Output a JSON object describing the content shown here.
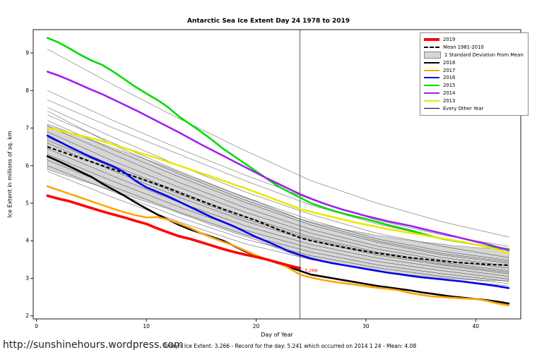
{
  "page": {
    "title": "Antarctic Sea Ice Extent Day 24 1978 to 2019",
    "footer_caption": "Today's Ice Extent: 3.266 - Record for the day: 5.241 which occurred on 2014 1 24 - Mean: 4.08",
    "url": "http://sunshinehours.wordpress.com"
  },
  "legend": {
    "items": [
      {
        "label": "2019",
        "type": "thick",
        "color": "#FF0000"
      },
      {
        "label": "Mean 1981-2010",
        "type": "dashed",
        "color": "#000000"
      },
      {
        "label": "1 Standard Deviation From Mean",
        "type": "box",
        "color": "#D6D6D6"
      },
      {
        "label": "2018",
        "type": "line",
        "color": "#000000"
      },
      {
        "label": "2017",
        "type": "line",
        "color": "#FFA500"
      },
      {
        "label": "2016",
        "type": "line",
        "color": "#0000EE"
      },
      {
        "label": "2015",
        "type": "line",
        "color": "#00DC00"
      },
      {
        "label": "2014",
        "type": "line",
        "color": "#A020F0"
      },
      {
        "label": "2013",
        "type": "line",
        "color": "#EFE600"
      },
      {
        "label": "Every Other Year",
        "type": "thin",
        "color": "#000000"
      }
    ]
  },
  "chart_data": {
    "type": "line",
    "title": "Antarctic Sea Ice Extent Day 24 1978 to 2019",
    "xlabel": "Day of Year",
    "ylabel": "Ice Extent in millions of sq. km",
    "xlim": [
      -0.3,
      44.1
    ],
    "ylim": [
      1.92,
      9.62
    ],
    "xticks": [
      0,
      10,
      20,
      30,
      40
    ],
    "yticks": [
      2,
      3,
      4,
      5,
      6,
      7,
      8,
      9
    ],
    "grid": false,
    "legend_position": "top-right",
    "vline_day": 24,
    "annotation": {
      "text": "3.266",
      "day": 24.4,
      "value": 3.17,
      "color": "#FF0000"
    },
    "stats": {
      "today_extent": 3.266,
      "record": 5.241,
      "record_date": "2014 1 24",
      "mean": 4.08
    },
    "days": [
      1,
      2,
      3,
      4,
      5,
      6,
      7,
      8,
      9,
      10,
      11,
      12,
      13,
      14,
      15,
      16,
      17,
      18,
      19,
      20,
      21,
      22,
      23,
      24,
      25,
      26,
      27,
      28,
      29,
      30,
      31,
      32,
      33,
      34,
      35,
      36,
      37,
      38,
      39,
      40,
      41,
      42,
      43
    ],
    "mean_series": {
      "name": "Mean 1981-2010",
      "values": [
        6.5,
        6.4,
        6.3,
        6.2,
        6.1,
        6.0,
        5.9,
        5.8,
        5.7,
        5.6,
        5.5,
        5.4,
        5.28,
        5.17,
        5.06,
        4.95,
        4.84,
        4.74,
        4.64,
        4.54,
        4.42,
        4.3,
        4.19,
        4.08,
        4.0,
        3.94,
        3.88,
        3.82,
        3.77,
        3.72,
        3.67,
        3.63,
        3.59,
        3.55,
        3.52,
        3.49,
        3.46,
        3.43,
        3.41,
        3.39,
        3.37,
        3.36,
        3.35
      ]
    },
    "std_band": {
      "name": "1 Standard Deviation From Mean",
      "std": [
        0.6,
        0.6,
        0.59,
        0.59,
        0.58,
        0.58,
        0.57,
        0.57,
        0.57,
        0.56,
        0.56,
        0.55,
        0.55,
        0.54,
        0.54,
        0.54,
        0.53,
        0.53,
        0.52,
        0.52,
        0.51,
        0.51,
        0.51,
        0.5,
        0.5,
        0.49,
        0.49,
        0.48,
        0.48,
        0.48,
        0.47,
        0.47,
        0.46,
        0.46,
        0.45,
        0.45,
        0.45,
        0.44,
        0.44,
        0.43,
        0.43,
        0.42,
        0.42
      ]
    },
    "series": [
      {
        "name": "2015",
        "color": "#00DC00",
        "width": 2.6,
        "values": [
          9.4,
          9.28,
          9.12,
          8.95,
          8.8,
          8.68,
          8.5,
          8.3,
          8.1,
          7.92,
          7.75,
          7.55,
          7.3,
          7.1,
          6.9,
          6.68,
          6.45,
          6.25,
          6.05,
          5.85,
          5.65,
          5.45,
          5.3,
          5.15,
          5.0,
          4.9,
          4.8,
          4.72,
          4.65,
          4.58,
          4.5,
          4.42,
          4.35,
          4.28,
          4.2,
          4.12,
          4.05,
          4.0,
          3.95,
          3.9,
          3.85,
          3.82,
          3.78
        ]
      },
      {
        "name": "2014",
        "color": "#A020F0",
        "width": 2.6,
        "values": [
          8.5,
          8.4,
          8.28,
          8.15,
          8.02,
          7.9,
          7.76,
          7.62,
          7.48,
          7.33,
          7.18,
          7.03,
          6.88,
          6.72,
          6.56,
          6.41,
          6.26,
          6.11,
          5.96,
          5.81,
          5.66,
          5.52,
          5.38,
          5.24,
          5.12,
          5.01,
          4.91,
          4.82,
          4.74,
          4.66,
          4.59,
          4.52,
          4.46,
          4.4,
          4.33,
          4.26,
          4.19,
          4.12,
          4.05,
          3.98,
          3.91,
          3.83,
          3.75
        ]
      },
      {
        "name": "2013",
        "color": "#EFE600",
        "width": 2.6,
        "values": [
          7.0,
          6.94,
          6.87,
          6.8,
          6.73,
          6.65,
          6.56,
          6.47,
          6.38,
          6.28,
          6.2,
          6.1,
          6.0,
          5.9,
          5.8,
          5.7,
          5.6,
          5.5,
          5.4,
          5.29,
          5.18,
          5.07,
          4.96,
          4.85,
          4.77,
          4.7,
          4.63,
          4.56,
          4.49,
          4.43,
          4.37,
          4.31,
          4.26,
          4.21,
          4.16,
          4.11,
          4.06,
          4.01,
          3.96,
          3.9,
          3.84,
          3.76,
          3.66
        ]
      },
      {
        "name": "2016",
        "color": "#0000EE",
        "width": 2.6,
        "values": [
          6.8,
          6.65,
          6.5,
          6.36,
          6.22,
          6.1,
          5.98,
          5.82,
          5.6,
          5.42,
          5.3,
          5.18,
          5.04,
          4.9,
          4.76,
          4.62,
          4.5,
          4.38,
          4.24,
          4.1,
          3.98,
          3.85,
          3.72,
          3.62,
          3.53,
          3.46,
          3.4,
          3.35,
          3.3,
          3.25,
          3.2,
          3.15,
          3.11,
          3.07,
          3.03,
          3.0,
          2.97,
          2.94,
          2.91,
          2.87,
          2.83,
          2.79,
          2.74
        ]
      },
      {
        "name": "2018",
        "color": "#000000",
        "width": 2.6,
        "values": [
          6.25,
          6.12,
          5.98,
          5.84,
          5.7,
          5.52,
          5.36,
          5.2,
          5.02,
          4.86,
          4.7,
          4.56,
          4.42,
          4.3,
          4.2,
          4.1,
          4.0,
          3.86,
          3.72,
          3.6,
          3.5,
          3.4,
          3.3,
          3.2,
          3.1,
          3.05,
          3.0,
          2.95,
          2.9,
          2.85,
          2.8,
          2.76,
          2.72,
          2.68,
          2.63,
          2.59,
          2.55,
          2.51,
          2.48,
          2.45,
          2.42,
          2.38,
          2.33
        ]
      },
      {
        "name": "2017",
        "color": "#FFA500",
        "width": 2.6,
        "values": [
          5.45,
          5.35,
          5.25,
          5.15,
          5.05,
          4.95,
          4.85,
          4.76,
          4.68,
          4.62,
          4.63,
          4.56,
          4.46,
          4.34,
          4.2,
          4.08,
          3.97,
          3.87,
          3.74,
          3.61,
          3.51,
          3.41,
          3.27,
          3.1,
          3.02,
          2.96,
          2.91,
          2.87,
          2.83,
          2.79,
          2.75,
          2.72,
          2.68,
          2.61,
          2.56,
          2.52,
          2.5,
          2.48,
          2.46,
          2.45,
          2.4,
          2.33,
          2.28
        ]
      },
      {
        "name": "2019",
        "color": "#FF0000",
        "width": 3.6,
        "values": [
          5.2,
          5.12,
          5.05,
          4.96,
          4.87,
          4.78,
          4.7,
          4.62,
          4.53,
          4.45,
          4.33,
          4.22,
          4.12,
          4.05,
          3.96,
          3.87,
          3.78,
          3.7,
          3.63,
          3.57,
          3.5,
          3.42,
          3.34,
          3.27
        ]
      }
    ],
    "background_years": {
      "name": "Every Other Year",
      "control_days": [
        1,
        7,
        13,
        19,
        25,
        31,
        37,
        43
      ],
      "lines": [
        [
          9.1,
          8.15,
          7.25,
          6.4,
          5.6,
          5.0,
          4.5,
          4.1
        ],
        [
          8.0,
          7.2,
          6.45,
          5.75,
          5.1,
          4.55,
          4.15,
          3.85
        ],
        [
          7.75,
          7.0,
          6.3,
          5.6,
          4.95,
          4.45,
          4.05,
          3.75
        ],
        [
          7.55,
          6.75,
          6.0,
          5.3,
          4.7,
          4.2,
          3.85,
          3.55
        ],
        [
          7.45,
          6.55,
          5.78,
          5.08,
          4.48,
          4.0,
          3.66,
          3.44
        ],
        [
          7.35,
          6.6,
          5.85,
          5.15,
          4.55,
          4.05,
          3.72,
          3.48
        ],
        [
          7.2,
          6.42,
          5.7,
          5.02,
          4.42,
          3.96,
          3.62,
          3.4
        ],
        [
          7.05,
          6.3,
          5.55,
          4.88,
          4.3,
          3.86,
          3.55,
          3.33
        ],
        [
          6.9,
          6.12,
          5.42,
          4.76,
          4.2,
          3.78,
          3.48,
          3.27
        ],
        [
          6.75,
          6.0,
          5.3,
          4.64,
          4.1,
          3.7,
          3.42,
          3.2
        ],
        [
          6.68,
          5.94,
          5.24,
          4.58,
          4.05,
          3.66,
          3.38,
          3.16
        ],
        [
          6.6,
          5.86,
          5.16,
          4.52,
          4.0,
          3.62,
          3.35,
          3.12
        ],
        [
          6.45,
          5.72,
          5.02,
          4.4,
          3.9,
          3.54,
          3.28,
          3.05
        ],
        [
          6.3,
          5.58,
          4.9,
          4.28,
          3.8,
          3.45,
          3.2,
          2.98
        ],
        [
          6.15,
          5.44,
          4.76,
          4.16,
          3.7,
          3.36,
          3.12,
          2.92
        ],
        [
          6.0,
          5.3,
          4.62,
          4.04,
          3.6,
          3.28,
          3.05,
          2.86
        ],
        [
          5.85,
          5.15,
          4.5,
          3.92,
          3.5,
          3.18,
          2.98,
          2.8
        ]
      ]
    }
  }
}
